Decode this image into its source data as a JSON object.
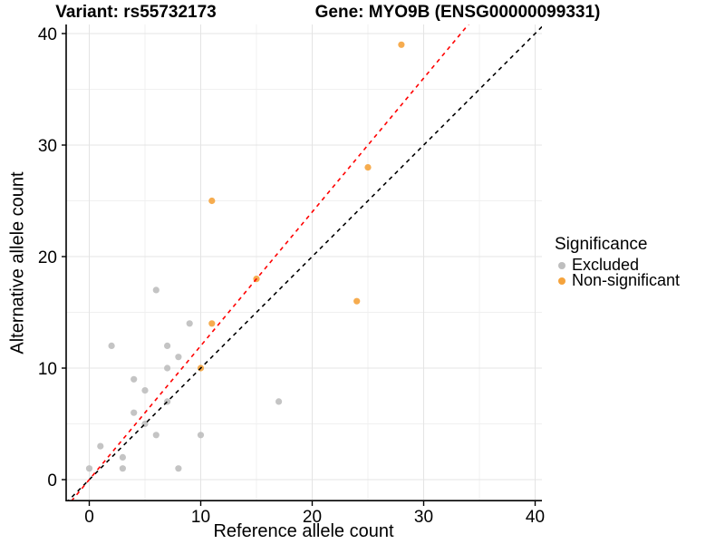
{
  "titles": {
    "variant": "Variant: rs55732173",
    "gene": "Gene: MYO9B (ENSG00000099331)"
  },
  "axes": {
    "x": {
      "label": "Reference allele count",
      "ticks": [
        0,
        10,
        20,
        30,
        40
      ],
      "range": [
        -2.1,
        40.6
      ]
    },
    "y": {
      "label": "Alternative allele count",
      "ticks": [
        0,
        10,
        20,
        30,
        40
      ],
      "range": [
        -2.0,
        40.8
      ]
    }
  },
  "legend": {
    "title": "Significance",
    "items": [
      {
        "label": "Excluded",
        "color": "#BEBEBE"
      },
      {
        "label": "Non-significant",
        "color": "#F5A33C"
      }
    ]
  },
  "colors": {
    "excluded_point": "#BEBEBE",
    "non_significant_point": "#F5A33C",
    "identity_line": "#000000",
    "ratio_line": "#FF0000",
    "grid_major": "#E4E4E4",
    "grid_minor": "#F0F0F0",
    "axis_line": "#000000"
  },
  "chart_data": {
    "type": "scatter",
    "title": "Variant: rs55732173 — Gene: MYO9B (ENSG00000099331)",
    "xlabel": "Reference allele count",
    "ylabel": "Alternative allele count",
    "xlim": [
      -2.1,
      40.6
    ],
    "ylim": [
      -2.0,
      40.8
    ],
    "grid": "major and minor, light gray on white",
    "legend_position": "right",
    "series": [
      {
        "name": "Excluded",
        "color": "#BEBEBE",
        "points": [
          [
            0,
            1
          ],
          [
            1,
            3
          ],
          [
            2,
            12
          ],
          [
            3,
            1
          ],
          [
            3,
            2
          ],
          [
            4,
            6
          ],
          [
            4,
            9
          ],
          [
            5,
            5
          ],
          [
            5,
            8
          ],
          [
            6,
            4
          ],
          [
            6,
            17
          ],
          [
            7,
            7
          ],
          [
            7,
            10
          ],
          [
            7,
            12
          ],
          [
            8,
            1
          ],
          [
            8,
            11
          ],
          [
            9,
            14
          ],
          [
            10,
            4
          ],
          [
            17,
            7
          ]
        ]
      },
      {
        "name": "Non-significant",
        "color": "#F5A33C",
        "points": [
          [
            10,
            10
          ],
          [
            11,
            14
          ],
          [
            11,
            25
          ],
          [
            15,
            18
          ],
          [
            24,
            16
          ],
          [
            25,
            28
          ],
          [
            28,
            39
          ]
        ]
      }
    ],
    "lines": [
      {
        "name": "identity-line",
        "slope": 1.0,
        "intercept": 0,
        "color": "#000000",
        "style": "dashed"
      },
      {
        "name": "ratio-line",
        "slope": 1.2,
        "intercept": 0,
        "color": "#FF0000",
        "style": "dashed"
      }
    ]
  }
}
